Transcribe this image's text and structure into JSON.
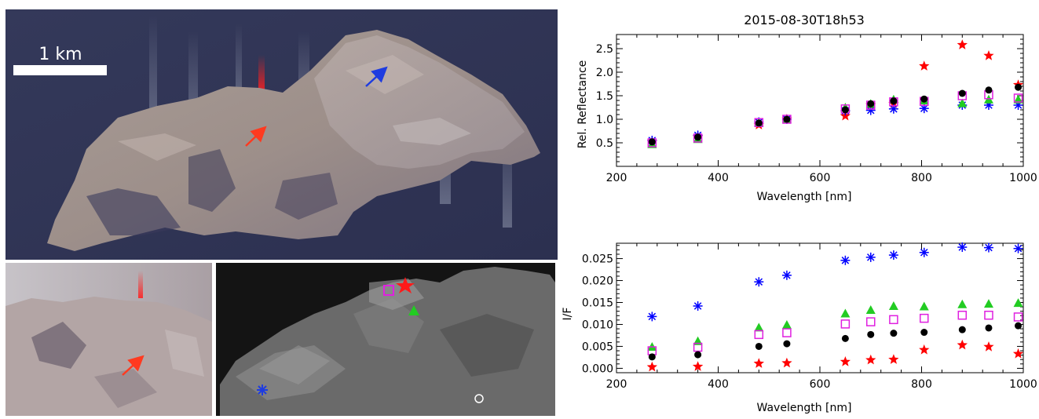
{
  "image_panel": {
    "scale_label": "1 km"
  },
  "chart_data": [
    {
      "type": "scatter",
      "title": "2015-08-30T18h53",
      "xlabel": "Wavelength [nm]",
      "ylabel": "Rel. Reflectance",
      "xlim": [
        200,
        1000
      ],
      "ylim": [
        0,
        2.8
      ],
      "xticks": [
        200,
        400,
        600,
        800,
        1000
      ],
      "yticks": [
        0.5,
        1.0,
        1.5,
        2.0,
        2.5
      ],
      "ytick_labels": [
        "0.5",
        "1.0",
        "1.5",
        "2.0",
        "2.5"
      ],
      "x": [
        270,
        360,
        480,
        535,
        650,
        700,
        745,
        805,
        880,
        932,
        990
      ],
      "series": [
        {
          "marker": "star",
          "color": "#ff0000",
          "values": [
            0.52,
            0.62,
            0.88,
            1.0,
            1.07,
            1.3,
            1.33,
            2.13,
            2.58,
            2.35,
            1.73
          ]
        },
        {
          "marker": "asterisk",
          "color": "#0000ff",
          "values": [
            0.55,
            0.66,
            0.94,
            1.0,
            1.18,
            1.19,
            1.22,
            1.23,
            1.3,
            1.3,
            1.3
          ]
        },
        {
          "marker": "triangle",
          "color": "#22cc22",
          "values": [
            0.47,
            0.58,
            0.92,
            1.0,
            1.25,
            1.33,
            1.42,
            1.4,
            1.34,
            1.42,
            1.42
          ]
        },
        {
          "marker": "square",
          "color": "#e020e0",
          "values": [
            0.5,
            0.6,
            0.93,
            1.0,
            1.22,
            1.3,
            1.37,
            1.38,
            1.5,
            1.52,
            1.45
          ]
        },
        {
          "marker": "circle",
          "color": "#000000",
          "values": [
            0.52,
            0.62,
            0.92,
            1.0,
            1.2,
            1.33,
            1.39,
            1.43,
            1.55,
            1.62,
            1.68
          ]
        }
      ]
    },
    {
      "type": "scatter",
      "xlabel": "Wavelength [nm]",
      "ylabel": "I/F",
      "xlim": [
        200,
        1000
      ],
      "ylim": [
        -0.001,
        0.0285
      ],
      "xticks": [
        200,
        400,
        600,
        800,
        1000
      ],
      "yticks": [
        0.0,
        0.005,
        0.01,
        0.015,
        0.02,
        0.025
      ],
      "ytick_labels": [
        "0.000",
        "0.005",
        "0.010",
        "0.015",
        "0.020",
        "0.025"
      ],
      "x": [
        270,
        360,
        480,
        535,
        650,
        700,
        745,
        805,
        880,
        932,
        990
      ],
      "series": [
        {
          "marker": "star",
          "color": "#ff0000",
          "values": [
            0.0003,
            0.0004,
            0.0011,
            0.0012,
            0.0015,
            0.0019,
            0.002,
            0.0042,
            0.0053,
            0.0049,
            0.0033
          ]
        },
        {
          "marker": "asterisk",
          "color": "#0000ff",
          "values": [
            0.0118,
            0.0142,
            0.0197,
            0.0212,
            0.0246,
            0.0253,
            0.0258,
            0.0264,
            0.0276,
            0.0275,
            0.0273
          ]
        },
        {
          "marker": "triangle",
          "color": "#22cc22",
          "values": [
            0.0049,
            0.0062,
            0.0093,
            0.0099,
            0.0125,
            0.0133,
            0.0142,
            0.0141,
            0.0146,
            0.0147,
            0.0149
          ]
        },
        {
          "marker": "square",
          "color": "#e020e0",
          "values": [
            0.004,
            0.0048,
            0.0077,
            0.0081,
            0.0101,
            0.0106,
            0.0111,
            0.0114,
            0.0121,
            0.0121,
            0.0117
          ]
        },
        {
          "marker": "circle",
          "color": "#000000",
          "values": [
            0.0026,
            0.0031,
            0.005,
            0.0056,
            0.0068,
            0.0077,
            0.008,
            0.0082,
            0.0088,
            0.0092,
            0.0097
          ]
        }
      ]
    }
  ]
}
